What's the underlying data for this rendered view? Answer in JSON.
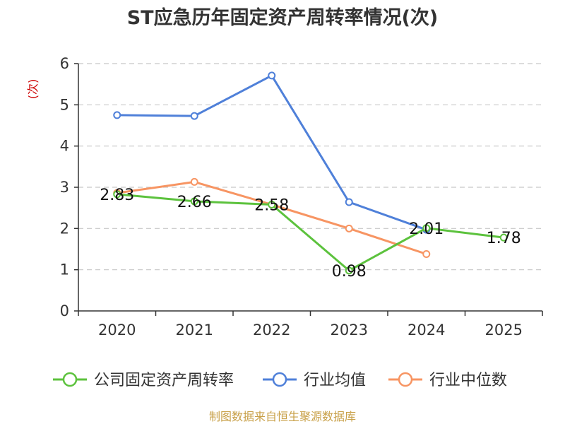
{
  "chart_data": {
    "type": "line",
    "title": "ST应急历年固定资产周转率情况(次)",
    "ylabel": "(次)",
    "categories": [
      "2020",
      "2021",
      "2022",
      "2023",
      "2024",
      "2025"
    ],
    "ylim": [
      0,
      6
    ],
    "yticks": [
      0,
      1,
      2,
      3,
      4,
      5,
      6
    ],
    "grid": true,
    "legend_position": "bottom",
    "series": [
      {
        "name": "公司固定资产周转率",
        "color": "#5cc23d",
        "values": [
          2.83,
          2.66,
          2.58,
          0.98,
          2.01,
          1.78
        ],
        "labels": [
          "2.83",
          "2.66",
          "2.58",
          "0.98",
          "2.01",
          "1.78"
        ]
      },
      {
        "name": "行业均值",
        "color": "#4f80d9",
        "values": [
          4.75,
          4.73,
          5.71,
          2.64,
          1.97,
          null
        ]
      },
      {
        "name": "行业中位数",
        "color": "#f79563",
        "values": [
          2.86,
          3.13,
          2.58,
          2.0,
          1.38,
          null
        ]
      }
    ],
    "source": "制图数据来自恒生聚源数据库"
  }
}
